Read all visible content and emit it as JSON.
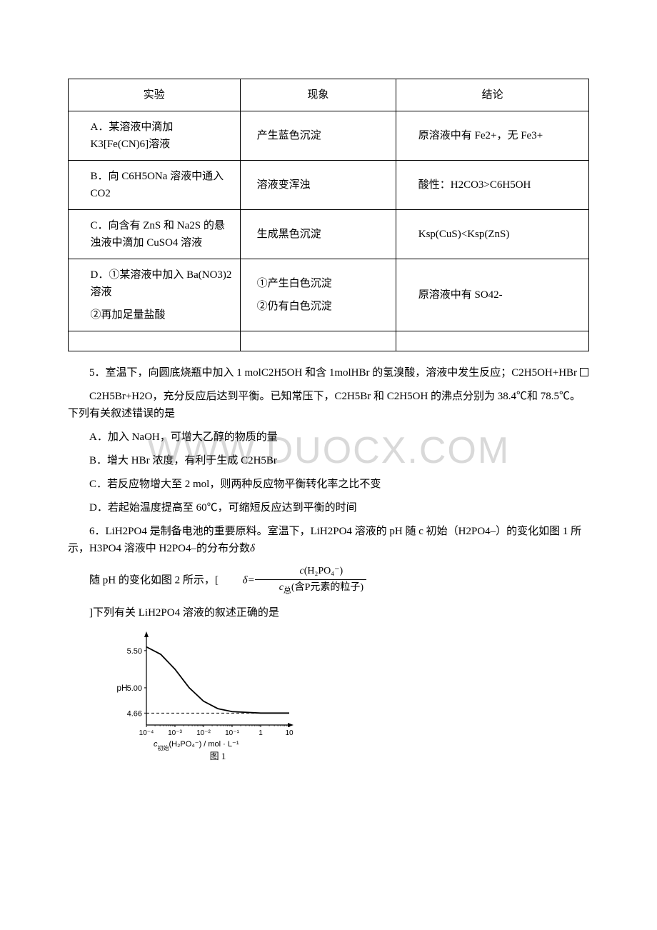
{
  "watermark": "WWW.DUOCX.COM",
  "table": {
    "header": {
      "c1": "实验",
      "c2": "现象",
      "c3": "结论"
    },
    "rows": [
      {
        "c1": "A．某溶液中滴加 K3[Fe(CN)6]溶液",
        "c2": "产生蓝色沉淀",
        "c3": "原溶液中有 Fe2+，无 Fe3+"
      },
      {
        "c1": "B．向 C6H5ONa 溶液中通入 CO2",
        "c2": "溶液变浑浊",
        "c3": "酸性：H2CO3>C6H5OH"
      },
      {
        "c1": "C．向含有 ZnS 和 Na2S 的悬浊液中滴加 CuSO4 溶液",
        "c2": "生成黑色沉淀",
        "c3": "Ksp(CuS)<Ksp(ZnS)"
      },
      {
        "c1_l1": "D．①某溶液中加入 Ba(NO3)2 溶液",
        "c1_l2": "②再加足量盐酸",
        "c2_l1": "①产生白色沉淀",
        "c2_l2": "②仍有白色沉淀",
        "c3": "原溶液中有 SO42-"
      }
    ]
  },
  "q5": {
    "line1": "5．室温下，向圆底烧瓶中加入 1 molC2H5OH 和含 1molHBr 的氢溴酸，溶液中发生反应；C2H5OH+HBr ",
    "line2": "C2H5Br+H2O，充分反应后达到平衡。已知常压下，C2H5Br 和 C2H5OH 的沸点分别为 38.4℃和 78.5℃。下列有关叙述错误的是",
    "A": "A．加入 NaOH，可增大乙醇的物质的量",
    "B": "B．增大 HBr 浓度，有利于生成 C2H5Br",
    "C": "C．若反应物增大至 2 mol，则两种反应物平衡转化率之比不变",
    "D": "D．若起始温度提高至 60℃，可缩短反应达到平衡的时间"
  },
  "q6": {
    "line1": "6．LiH2PO4 是制备电池的重要原料。室温下，LiH2PO4 溶液的 pH 随 c 初始（H2PO4–）的变化如图 1 所示，H3PO4 溶液中 H2PO4–的分布分数",
    "delta": "δ",
    "formula_pre": "随 pH 的变化如图 2 所示，[",
    "formula_num_c": "c",
    "formula_num_rest": "(H₂PO₄⁻)",
    "formula_den_c": "c",
    "formula_den_sub": "总",
    "formula_den_rest": "(含P元素的粒子)",
    "formula_eq": "=",
    "line2": "]下列有关 LiH2PO4 溶液的叙述正确的是"
  },
  "chart": {
    "y_label": "pH",
    "y_ticks": [
      "5.50",
      "5.00",
      "4.66"
    ],
    "x_ticks": [
      "10⁻⁴",
      "10⁻³",
      "10⁻²",
      "10⁻¹",
      "1",
      "10"
    ],
    "x_label_prefix": "c",
    "x_label_sub": "初始",
    "x_label_rest": "(H₂PO₄⁻) / mol · L⁻¹",
    "caption": "图 1",
    "axis_color": "#000000",
    "line_color": "#000000",
    "dash_color": "#000000",
    "bg": "#ffffff",
    "xrange": [
      -4,
      1
    ],
    "yrange": [
      4.5,
      5.7
    ],
    "curve": [
      {
        "x": -4,
        "y": 5.55
      },
      {
        "x": -3.5,
        "y": 5.45
      },
      {
        "x": -3,
        "y": 5.25
      },
      {
        "x": -2.5,
        "y": 5.0
      },
      {
        "x": -2,
        "y": 4.82
      },
      {
        "x": -1.5,
        "y": 4.72
      },
      {
        "x": -1,
        "y": 4.68
      },
      {
        "x": 0,
        "y": 4.66
      },
      {
        "x": 1,
        "y": 4.66
      }
    ],
    "asymptote": 4.66
  }
}
